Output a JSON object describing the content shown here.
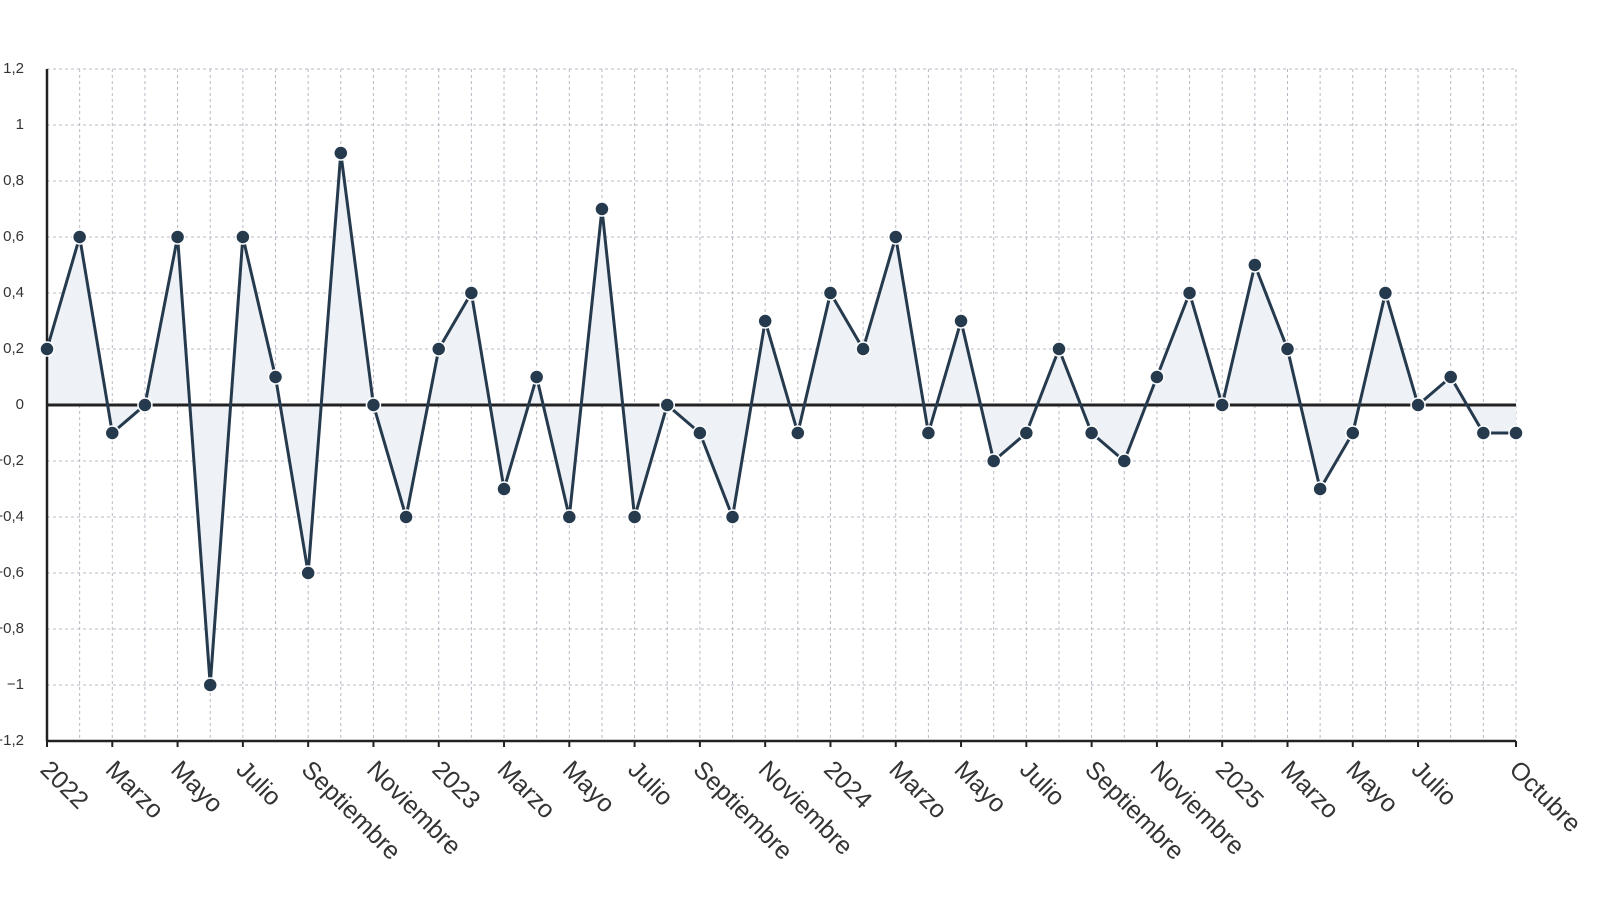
{
  "chart_data": {
    "type": "line",
    "categories": [
      "2022",
      null,
      "Marzo",
      null,
      "Mayo",
      null,
      "Julio",
      null,
      "Septiembre",
      null,
      "Noviembre",
      null,
      "2023",
      null,
      "Marzo",
      null,
      "Mayo",
      null,
      "Julio",
      null,
      "Septiembre",
      null,
      "Noviembre",
      null,
      "2024",
      null,
      "Marzo",
      null,
      "Mayo",
      null,
      "Julio",
      null,
      "Septiembre",
      null,
      "Noviembre",
      null,
      "2025",
      null,
      "Marzo",
      null,
      "Mayo",
      null,
      "Julio",
      null,
      null,
      "Octubre"
    ],
    "series": [
      {
        "color": "#263a4e",
        "values": [
          0.2,
          0.6,
          -0.1,
          0,
          0.6,
          -1,
          0.6,
          0.1,
          -0.6,
          0.9,
          0,
          -0.4,
          0.2,
          0.4,
          -0.3,
          0.1,
          -0.4,
          0.7,
          -0.4,
          0,
          -0.1,
          -0.4,
          0.3,
          -0.1,
          0.4,
          0.2,
          0.6,
          -0.1,
          0.3,
          -0.2,
          -0.1,
          0.2,
          -0.1,
          -0.2,
          0.1,
          0.4,
          0,
          0.5,
          0.2,
          -0.3,
          -0.1,
          0.4,
          0,
          0.1,
          -0.1,
          -0.1
        ]
      }
    ],
    "area_fill": "#eef1f5",
    "ylim": [
      -1.2,
      1.2
    ],
    "yticks": [
      {
        "value": -1.2,
        "label": "−1,2"
      },
      {
        "value": -1,
        "label": "−1"
      },
      {
        "value": -0.8,
        "label": "−0,8"
      },
      {
        "value": -0.6,
        "label": "−0,6"
      },
      {
        "value": -0.4,
        "label": "−0,4"
      },
      {
        "value": -0.2,
        "label": "−0,2"
      },
      0,
      {
        "value": 0.2,
        "label": "0,2"
      },
      {
        "value": 0.4,
        "label": "0,4"
      },
      {
        "value": 0.6,
        "label": "0,6"
      },
      {
        "value": 0.8,
        "label": "0,8"
      },
      1,
      {
        "value": 1.2,
        "label": "1,2"
      }
    ],
    "grid": true
  }
}
